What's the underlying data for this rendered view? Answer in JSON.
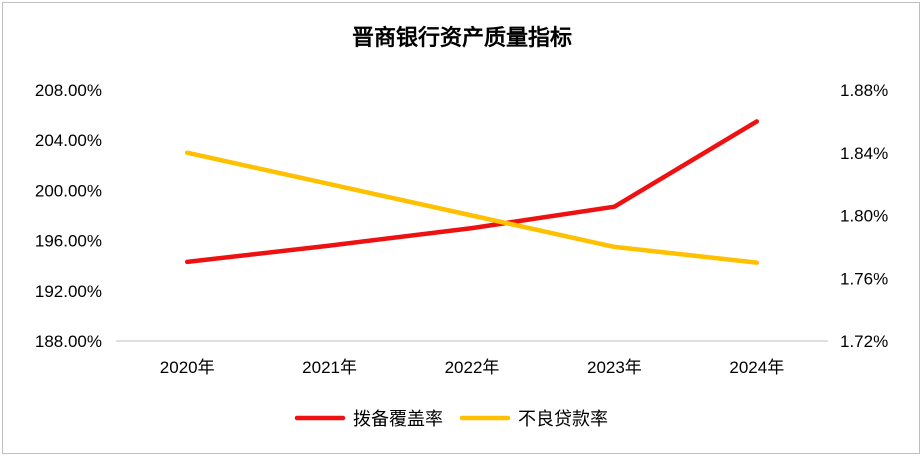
{
  "chart_data": {
    "type": "line",
    "title": "晋商银行资产质量指标",
    "categories": [
      "2020年",
      "2021年",
      "2022年",
      "2023年",
      "2024年"
    ],
    "series": [
      {
        "name": "拨备覆盖率",
        "axis": "left",
        "color": "#ee1111",
        "values": [
          194.3,
          195.6,
          197.0,
          198.7,
          205.5
        ]
      },
      {
        "name": "不良贷款率",
        "axis": "right",
        "color": "#ffc000",
        "values": [
          1.84,
          1.82,
          1.8,
          1.78,
          1.77
        ]
      }
    ],
    "y_left": {
      "range": [
        188,
        208
      ],
      "ticks": [
        188,
        192,
        196,
        200,
        204,
        208
      ],
      "tick_labels": [
        "188.00%",
        "192.00%",
        "196.00%",
        "200.00%",
        "204.00%",
        "208.00%"
      ]
    },
    "y_right": {
      "range": [
        1.72,
        1.88
      ],
      "ticks": [
        1.72,
        1.76,
        1.8,
        1.84,
        1.88
      ],
      "tick_labels": [
        "1.72%",
        "1.76%",
        "1.80%",
        "1.84%",
        "1.88%"
      ]
    },
    "legend_position": "bottom",
    "grid": false
  }
}
